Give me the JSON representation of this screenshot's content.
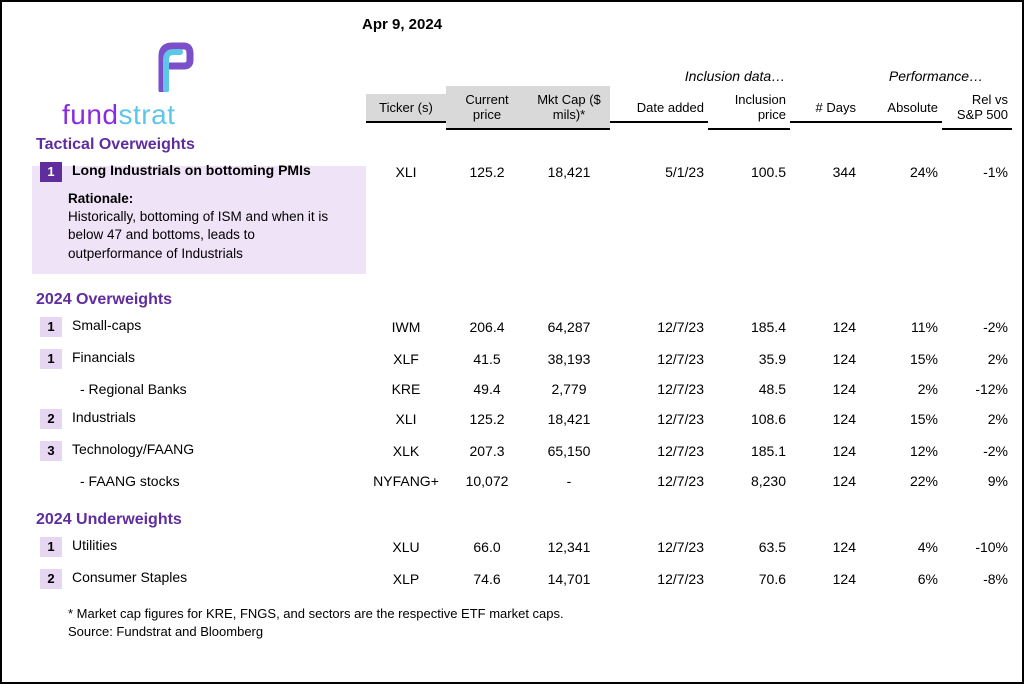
{
  "date": "Apr 9, 2024",
  "brand": {
    "part1": "fund",
    "part2": "strat"
  },
  "group_headers": {
    "inclusion": "Inclusion data…",
    "performance": "Performance…"
  },
  "columns": {
    "ticker": "Ticker (s)",
    "price": "Current price",
    "mktcap": "Mkt Cap ($ mils)*",
    "date_added": "Date added",
    "incl_price": "Inclusion price",
    "days": "# Days",
    "absolute": "Absolute",
    "rel": "Rel vs S&P 500"
  },
  "sections": {
    "tactical": {
      "title": "Tactical Overweights",
      "rows": [
        {
          "num": "1",
          "badge": "dark",
          "bold": true,
          "name": "Long Industrials on bottoming PMIs",
          "ticker": "XLI",
          "price": "125.2",
          "mktcap": "18,421",
          "date_added": "5/1/23",
          "incl_price": "100.5",
          "days": "344",
          "absolute": "24%",
          "rel": "-1%"
        }
      ],
      "rationale": {
        "label": "Rationale:",
        "text": "Historically, bottoming of ISM and when it is below 47 and bottoms, leads to outperformance of Industrials"
      }
    },
    "ow2024": {
      "title": "2024 Overweights",
      "rows": [
        {
          "num": "1",
          "badge": "light",
          "name": "Small-caps",
          "ticker": "IWM",
          "price": "206.4",
          "mktcap": "64,287",
          "date_added": "12/7/23",
          "incl_price": "185.4",
          "days": "124",
          "absolute": "11%",
          "rel": "-2%"
        },
        {
          "num": "1",
          "badge": "light",
          "name": "Financials",
          "ticker": "XLF",
          "price": "41.5",
          "mktcap": "38,193",
          "date_added": "12/7/23",
          "incl_price": "35.9",
          "days": "124",
          "absolute": "15%",
          "rel": "2%"
        },
        {
          "num": "",
          "badge": "none",
          "name": " - Regional Banks",
          "indent": true,
          "ticker": "KRE",
          "price": "49.4",
          "mktcap": "2,779",
          "date_added": "12/7/23",
          "incl_price": "48.5",
          "days": "124",
          "absolute": "2%",
          "rel": "-12%"
        },
        {
          "num": "2",
          "badge": "light",
          "name": "Industrials",
          "ticker": "XLI",
          "price": "125.2",
          "mktcap": "18,421",
          "date_added": "12/7/23",
          "incl_price": "108.6",
          "days": "124",
          "absolute": "15%",
          "rel": "2%"
        },
        {
          "num": "3",
          "badge": "light",
          "name": "Technology/FAANG",
          "ticker": "XLK",
          "price": "207.3",
          "mktcap": "65,150",
          "date_added": "12/7/23",
          "incl_price": "185.1",
          "days": "124",
          "absolute": "12%",
          "rel": "-2%"
        },
        {
          "num": "",
          "badge": "none",
          "name": " - FAANG stocks",
          "indent": true,
          "ticker": "NYFANG+",
          "price": "10,072",
          "mktcap": "-",
          "date_added": "12/7/23",
          "incl_price": "8,230",
          "days": "124",
          "absolute": "22%",
          "rel": "9%"
        }
      ]
    },
    "uw2024": {
      "title": "2024 Underweights",
      "rows": [
        {
          "num": "1",
          "badge": "light",
          "name": "Utilities",
          "ticker": "XLU",
          "price": "66.0",
          "mktcap": "12,341",
          "date_added": "12/7/23",
          "incl_price": "63.5",
          "days": "124",
          "absolute": "4%",
          "rel": "-10%"
        },
        {
          "num": "2",
          "badge": "light",
          "name": "Consumer Staples",
          "ticker": "XLP",
          "price": "74.6",
          "mktcap": "14,701",
          "date_added": "12/7/23",
          "incl_price": "70.6",
          "days": "124",
          "absolute": "6%",
          "rel": "-8%"
        }
      ]
    }
  },
  "footnotes": {
    "line1": "* Market cap figures for KRE, FNGS, and sectors are the respective ETF market caps.",
    "line2": "Source: Fundstrat and Bloomberg"
  },
  "style": {
    "badge_dark_bg": "#5f2d9e",
    "badge_light_bg": "#e6d6f2",
    "section_color": "#5f2d9e",
    "ticker_bg": "#d9d9d9",
    "shade_bg": "#efe3f7"
  }
}
